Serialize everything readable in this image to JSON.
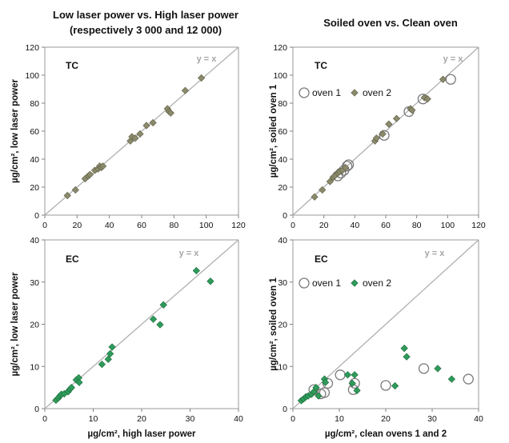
{
  "figure": {
    "left_column_title": [
      "Low laser power vs. High laser power",
      "(respectively 3 000 and 12 000)"
    ],
    "right_column_title": "Soiled oven vs. Clean oven"
  },
  "colors": {
    "gray_diamond": "#8b8a6b",
    "gray_diamond_edge": "#5f5e47",
    "green_diamond": "#2e9b5a",
    "green_diamond_edge": "#1d6b3c",
    "open_circle": "#7a7a7a",
    "reference_line": "#b0b0b0",
    "axis": "#808080"
  },
  "chart_data": [
    {
      "id": "tc_laser",
      "type": "scatter",
      "panel_label": "TC",
      "reference_line": "y = x",
      "xlim": [
        0,
        120
      ],
      "ylim": [
        0,
        120
      ],
      "xticks": [
        0,
        20,
        40,
        60,
        80,
        100,
        120
      ],
      "yticks": [
        0,
        20,
        40,
        60,
        80,
        100,
        120
      ],
      "xlabel": "",
      "ylabel": "µg/cm², low laser power",
      "series": [
        {
          "marker": "gray-diamond",
          "points": [
            [
              14,
              14
            ],
            [
              19,
              18
            ],
            [
              25,
              26
            ],
            [
              27,
              28
            ],
            [
              28,
              29
            ],
            [
              31,
              32
            ],
            [
              33,
              33
            ],
            [
              34,
              35
            ],
            [
              35,
              34
            ],
            [
              36,
              35
            ],
            [
              53,
              53
            ],
            [
              54,
              56
            ],
            [
              56,
              55
            ],
            [
              59,
              58
            ],
            [
              63,
              64
            ],
            [
              67,
              66
            ],
            [
              76,
              76
            ],
            [
              77,
              74
            ],
            [
              78,
              73
            ],
            [
              87,
              89
            ],
            [
              97,
              98
            ]
          ]
        }
      ]
    },
    {
      "id": "tc_oven",
      "type": "scatter",
      "panel_label": "TC",
      "reference_line": "y = x",
      "xlim": [
        0,
        120
      ],
      "ylim": [
        0,
        120
      ],
      "xticks": [
        0,
        20,
        40,
        60,
        80,
        100,
        120
      ],
      "yticks": [
        0,
        20,
        40,
        60,
        80,
        100,
        120
      ],
      "xlabel": "",
      "ylabel": "µg/cm², soiled oven 1",
      "legend_position": "top-left",
      "series": [
        {
          "name": "oven 1",
          "marker": "open-circle",
          "points": [
            [
              29,
              28
            ],
            [
              31,
              30
            ],
            [
              33,
              32
            ],
            [
              35,
              35
            ],
            [
              36,
              36
            ],
            [
              59,
              57
            ],
            [
              75,
              74
            ],
            [
              84,
              83
            ],
            [
              102,
              97
            ]
          ]
        },
        {
          "name": "oven 2",
          "marker": "gray-diamond",
          "points": [
            [
              14,
              13
            ],
            [
              19,
              18
            ],
            [
              24,
              24
            ],
            [
              26,
              27
            ],
            [
              27,
              28
            ],
            [
              29,
              30
            ],
            [
              30,
              31
            ],
            [
              32,
              32
            ],
            [
              34,
              34
            ],
            [
              53,
              53
            ],
            [
              54,
              55
            ],
            [
              58,
              58
            ],
            [
              62,
              65
            ],
            [
              67,
              69
            ],
            [
              76,
              76
            ],
            [
              77,
              75
            ],
            [
              85,
              84
            ],
            [
              87,
              83
            ],
            [
              97,
              97
            ]
          ]
        }
      ]
    },
    {
      "id": "ec_laser",
      "type": "scatter",
      "panel_label": "EC",
      "reference_line": "y = x",
      "xlim": [
        0,
        40
      ],
      "ylim": [
        0,
        40
      ],
      "xticks": [
        0,
        10,
        20,
        30,
        40
      ],
      "yticks": [
        0,
        10,
        20,
        30,
        40
      ],
      "xlabel": "µg/cm², high laser power",
      "ylabel": "µg/cm², low laser power",
      "series": [
        {
          "marker": "green-diamond",
          "points": [
            [
              2.3,
              2.0
            ],
            [
              2.8,
              2.5
            ],
            [
              3.1,
              3.0
            ],
            [
              3.4,
              3.4
            ],
            [
              4.0,
              3.5
            ],
            [
              4.8,
              4.0
            ],
            [
              5.2,
              4.6
            ],
            [
              5.5,
              5.0
            ],
            [
              6.5,
              6.8
            ],
            [
              7.0,
              7.3
            ],
            [
              7.1,
              6.2
            ],
            [
              11.8,
              10.5
            ],
            [
              13.1,
              11.7
            ],
            [
              13.5,
              13.0
            ],
            [
              13.9,
              14.6
            ],
            [
              22.4,
              21.2
            ],
            [
              23.8,
              19.9
            ],
            [
              24.5,
              24.6
            ],
            [
              31.3,
              32.7
            ],
            [
              34.2,
              30.2
            ]
          ]
        }
      ]
    },
    {
      "id": "ec_oven",
      "type": "scatter",
      "panel_label": "EC",
      "reference_line": "y = x",
      "xlim": [
        0,
        40
      ],
      "ylim": [
        0,
        40
      ],
      "xticks": [
        0,
        10,
        20,
        30,
        40
      ],
      "yticks": [
        0,
        10,
        20,
        30,
        40
      ],
      "xlabel": "µg/cm², clean ovens 1 and 2",
      "ylabel": "µg/cm², soiled oven 1",
      "legend_position": "top-left",
      "series": [
        {
          "name": "oven 1",
          "marker": "open-circle",
          "points": [
            [
              4.5,
              4.5
            ],
            [
              6.0,
              3.5
            ],
            [
              6.8,
              3.8
            ],
            [
              7.5,
              6.0
            ],
            [
              10.2,
              8.0
            ],
            [
              13.0,
              4.5
            ],
            [
              13.3,
              6.0
            ],
            [
              20.0,
              5.5
            ],
            [
              28.2,
              9.5
            ],
            [
              37.8,
              7.0
            ]
          ]
        },
        {
          "name": "oven 2",
          "marker": "green-diamond",
          "points": [
            [
              1.8,
              1.9
            ],
            [
              2.3,
              2.3
            ],
            [
              2.8,
              2.8
            ],
            [
              3.3,
              3.0
            ],
            [
              4.0,
              3.4
            ],
            [
              4.5,
              4.0
            ],
            [
              5.0,
              5.0
            ],
            [
              5.5,
              3.0
            ],
            [
              6.8,
              7.0
            ],
            [
              7.0,
              6.2
            ],
            [
              11.8,
              8.0
            ],
            [
              12.8,
              6.0
            ],
            [
              13.3,
              8.0
            ],
            [
              13.8,
              4.3
            ],
            [
              22.0,
              5.4
            ],
            [
              24.0,
              14.3
            ],
            [
              24.5,
              12.3
            ],
            [
              31.2,
              9.5
            ],
            [
              34.2,
              7.0
            ]
          ]
        }
      ]
    }
  ]
}
